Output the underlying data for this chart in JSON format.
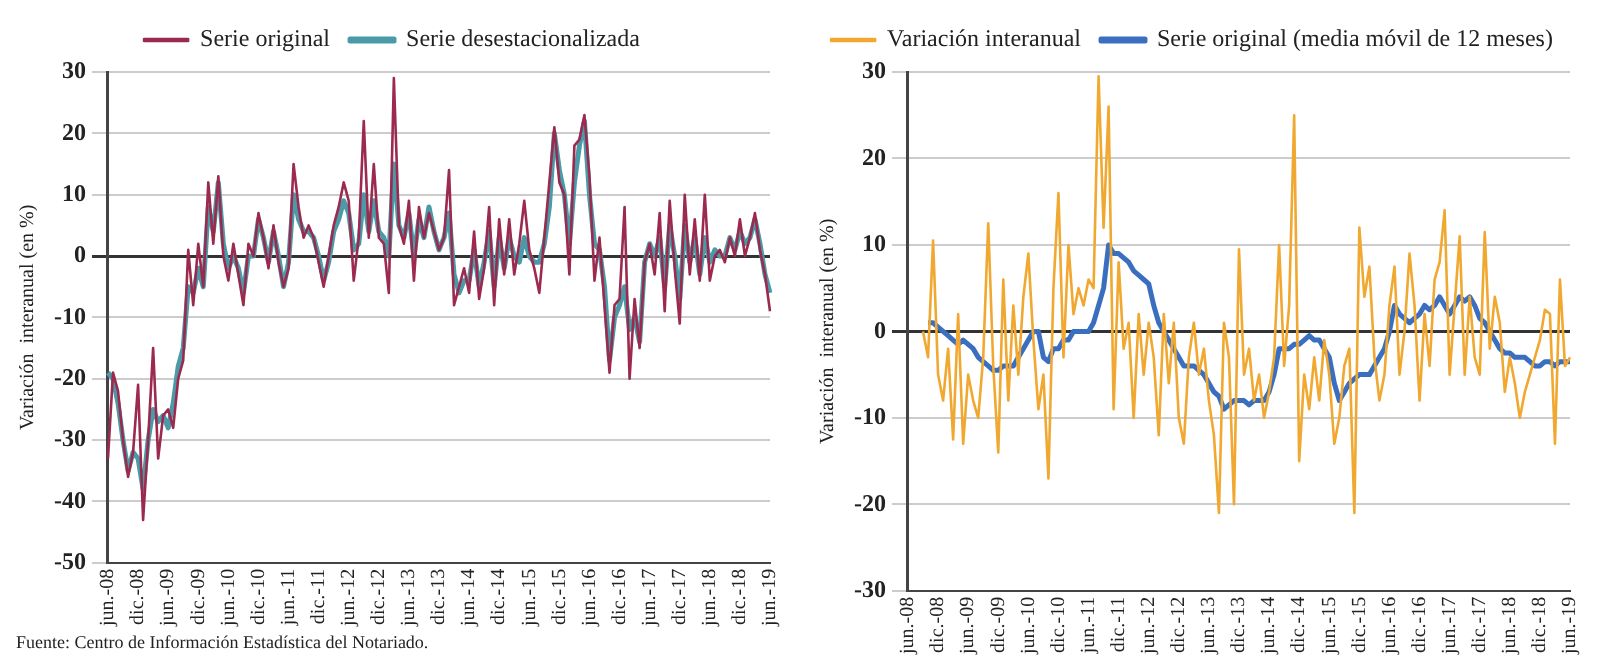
{
  "chart_data": [
    {
      "type": "line",
      "ylabel": "Variación  interanual (en %)",
      "ylim": [
        -50,
        30
      ],
      "yticks": [
        -50,
        -40,
        -30,
        -20,
        -10,
        0,
        10,
        20,
        30
      ],
      "grid": "y",
      "legend": "top",
      "marker": "none",
      "line_style": "solid",
      "categories": [
        "jun.-08",
        null,
        null,
        null,
        null,
        null,
        "dic.-08",
        null,
        null,
        null,
        null,
        null,
        "jun.-09",
        null,
        null,
        null,
        null,
        null,
        "dic.-09",
        null,
        null,
        null,
        null,
        null,
        "jun.-10",
        null,
        null,
        null,
        null,
        null,
        "dic.-10",
        null,
        null,
        null,
        null,
        null,
        "jun.-11",
        null,
        null,
        null,
        null,
        null,
        "dic.-11",
        null,
        null,
        null,
        null,
        null,
        "jun.-12",
        null,
        null,
        null,
        null,
        null,
        "dic.-12",
        null,
        null,
        null,
        null,
        null,
        "jun.-13",
        null,
        null,
        null,
        null,
        null,
        "dic.-13",
        null,
        null,
        null,
        null,
        null,
        "jun.-14",
        null,
        null,
        null,
        null,
        null,
        "dic.-14",
        null,
        null,
        null,
        null,
        null,
        "jun.-15",
        null,
        null,
        null,
        null,
        null,
        "dic.-15",
        null,
        null,
        null,
        null,
        null,
        "jun.-16",
        null,
        null,
        null,
        null,
        null,
        "dic.-16",
        null,
        null,
        null,
        null,
        null,
        "jun.-17",
        null,
        null,
        null,
        null,
        null,
        "dic.-17",
        null,
        null,
        null,
        null,
        null,
        "jun.-18",
        null,
        null,
        null,
        null,
        null,
        "dic.-18",
        null,
        null,
        null,
        null,
        null,
        "jun.-19"
      ],
      "series": [
        {
          "name": "Serie original",
          "color": "#9b2a4e",
          "values": [
            -33,
            -19,
            -22,
            -30,
            -36,
            -32,
            -21,
            -43,
            -30,
            -15,
            -33,
            -26,
            -25,
            -28,
            -20,
            -17,
            1,
            -8,
            2,
            -5,
            12,
            2,
            13,
            0,
            -4,
            2,
            -3,
            -8,
            2,
            0,
            7,
            3,
            -2,
            5,
            -1,
            -5,
            -2,
            15,
            8,
            3,
            5,
            3,
            -1,
            -5,
            0,
            5,
            8,
            12,
            9,
            -4,
            3,
            22,
            3,
            15,
            3,
            2,
            -6,
            29,
            5,
            2,
            9,
            -4,
            8,
            3,
            7,
            4,
            1,
            3,
            14,
            -8,
            -5,
            -2,
            -6,
            4,
            -7,
            -2,
            8,
            -8,
            6,
            -3,
            6,
            -3,
            2,
            9,
            1,
            -2,
            -6,
            3,
            12,
            21,
            12,
            10,
            -3,
            18,
            19,
            23,
            13,
            -4,
            3,
            -8,
            -19,
            -8,
            -7,
            8,
            -20,
            -7,
            -15,
            -1,
            2,
            -3,
            7,
            -9,
            9,
            -2,
            -11,
            10,
            -3,
            6,
            -4,
            10,
            -4,
            0,
            1,
            -1,
            3,
            0,
            6,
            0,
            3,
            7,
            1,
            -3,
            -9
          ]
        },
        {
          "name": "Serie desestacionalizada",
          "color": "#4a9aa8",
          "values": [
            -19,
            -20,
            -24,
            -30,
            -35,
            -32,
            -33,
            -38,
            -30,
            -25,
            -27,
            -26,
            -28,
            -24,
            -18,
            -15,
            -5,
            -6,
            -2,
            -5,
            8,
            4,
            12,
            2,
            -2,
            0,
            -2,
            -6,
            0,
            0,
            6,
            3,
            -1,
            4,
            0,
            -5,
            -1,
            10,
            6,
            4,
            4,
            3,
            0,
            -4,
            -1,
            4,
            6,
            9,
            7,
            1,
            2,
            10,
            4,
            9,
            4,
            3,
            0,
            15,
            5,
            3,
            7,
            0,
            6,
            3,
            8,
            4,
            1,
            3,
            7,
            -3,
            -6,
            -4,
            -4,
            1,
            -5,
            -1,
            4,
            -5,
            3,
            -2,
            3,
            0,
            -1,
            3,
            0,
            -1,
            -1,
            2,
            8,
            20,
            14,
            10,
            2,
            12,
            18,
            22,
            10,
            2,
            1,
            -5,
            -17,
            -10,
            -8,
            -5,
            -12,
            -10,
            -14,
            -1,
            2,
            0,
            3,
            -5,
            5,
            0,
            -7,
            5,
            -1,
            3,
            -3,
            3,
            -1,
            1,
            0,
            0,
            3,
            1,
            4,
            2,
            3,
            6,
            2,
            -3,
            -6
          ]
        }
      ],
      "annotations": [
        "Fuente: Centro de Información Estadística del Notariado."
      ]
    },
    {
      "type": "line",
      "ylabel": "Variación  interanual (en %)",
      "ylim": [
        -30,
        30
      ],
      "yticks": [
        -30,
        -20,
        -10,
        0,
        10,
        20,
        30
      ],
      "grid": "y",
      "legend": "top",
      "marker": "none",
      "line_style": "solid",
      "categories": [
        "jun.-08",
        null,
        null,
        null,
        null,
        null,
        "dic.-08",
        null,
        null,
        null,
        null,
        null,
        "jun.-09",
        null,
        null,
        null,
        null,
        null,
        "dic.-09",
        null,
        null,
        null,
        null,
        null,
        "jun.-10",
        null,
        null,
        null,
        null,
        null,
        "dic.-10",
        null,
        null,
        null,
        null,
        null,
        "jun.-11",
        null,
        null,
        null,
        null,
        null,
        "dic.-11",
        null,
        null,
        null,
        null,
        null,
        "jun.-12",
        null,
        null,
        null,
        null,
        null,
        "dic.-12",
        null,
        null,
        null,
        null,
        null,
        "jun.-13",
        null,
        null,
        null,
        null,
        null,
        "dic.-13",
        null,
        null,
        null,
        null,
        null,
        "jun.-14",
        null,
        null,
        null,
        null,
        null,
        "dic.-14",
        null,
        null,
        null,
        null,
        null,
        "jun.-15",
        null,
        null,
        null,
        null,
        null,
        "dic.-15",
        null,
        null,
        null,
        null,
        null,
        "jun.-16",
        null,
        null,
        null,
        null,
        null,
        "dic.-16",
        null,
        null,
        null,
        null,
        null,
        "jun.-17",
        null,
        null,
        null,
        null,
        null,
        "dic.-17",
        null,
        null,
        null,
        null,
        null,
        "jun.-18",
        null,
        null,
        null,
        null,
        null,
        "dic.-18",
        null,
        null,
        null,
        null,
        null,
        "jun.-19"
      ],
      "series": [
        {
          "name": "Variación interanual",
          "color": "#f0a830",
          "values": [
            null,
            null,
            null,
            0,
            -3,
            10.5,
            -5,
            -8,
            -2,
            -12.5,
            2,
            -13,
            -5,
            -8,
            -10,
            -3,
            12.5,
            -4,
            -14,
            6,
            -8,
            3,
            -5,
            4,
            9,
            -1,
            -9,
            -5,
            -17,
            5,
            16,
            -3,
            10,
            2,
            5,
            3,
            6,
            5,
            29.5,
            12,
            26,
            -9,
            8,
            -2,
            1,
            -10,
            2,
            -5,
            1,
            -3,
            -12,
            2,
            -6,
            1,
            -10,
            -13,
            -3,
            1,
            -5,
            -2,
            -8,
            -12,
            -21,
            1,
            -3,
            -20,
            9.5,
            -5,
            -2,
            -8,
            -5,
            -10,
            -7,
            -3,
            10,
            -4,
            3,
            25,
            -15,
            -5,
            -9,
            -3,
            -8,
            -1,
            -5,
            -13,
            -10,
            -4,
            -2,
            -21,
            12,
            4,
            7.5,
            -3,
            -8,
            -5,
            3,
            7.5,
            -5,
            0,
            9,
            3,
            -8,
            2,
            -4,
            6,
            8,
            14,
            -5,
            3,
            11,
            -5,
            4,
            -3,
            -5,
            11.5,
            -2,
            4,
            1,
            -7,
            -3,
            -6,
            -10,
            -7,
            -5,
            -3,
            -1,
            2.5,
            2,
            -13,
            6,
            -4,
            -3
          ]
        },
        {
          "name": "Serie original (media móvil de 12 meses)",
          "color": "#3a6fc0",
          "values": [
            null,
            null,
            null,
            null,
            1,
            1,
            0.5,
            0,
            -0.5,
            -1,
            -1.5,
            -1,
            -1.5,
            -2,
            -3,
            -3.5,
            -4,
            -4.5,
            -4.5,
            -4,
            -4,
            -4,
            -3,
            -2,
            -1,
            0,
            0,
            -3,
            -3.5,
            -2,
            -2,
            -1,
            -1,
            0,
            0,
            0,
            0,
            1,
            3,
            5,
            10,
            9,
            9,
            8.5,
            8,
            7,
            6.5,
            6,
            5.5,
            3,
            1,
            0,
            -1,
            -2,
            -3,
            -4,
            -4,
            -4,
            -4.5,
            -5,
            -6,
            -7,
            -7.5,
            -9,
            -8.5,
            -8,
            -8,
            -8,
            -8.5,
            -8,
            -8,
            -8,
            -7,
            -5,
            -2,
            -2,
            -2,
            -1.5,
            -1.5,
            -1,
            -0.5,
            -1,
            -1,
            -2,
            -3,
            -6,
            -8,
            -7,
            -6,
            -5.5,
            -5,
            -5,
            -5,
            -4,
            -3,
            -2,
            0,
            3,
            2,
            1.5,
            1,
            1.5,
            2,
            3,
            2.5,
            3,
            4,
            3,
            2,
            3,
            4,
            3.5,
            4,
            3,
            1.5,
            1,
            0,
            -1,
            -2,
            -2.5,
            -2.5,
            -3,
            -3,
            -3,
            -3.5,
            -4,
            -4,
            -3.5,
            -3.5,
            -4,
            -3.5,
            -3.5,
            -3.5
          ]
        }
      ]
    }
  ]
}
